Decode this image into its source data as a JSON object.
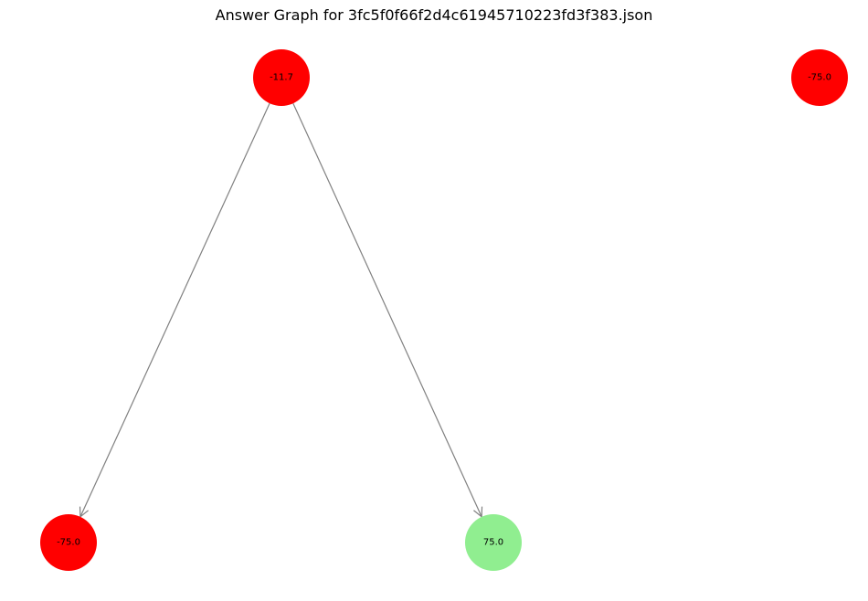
{
  "title": "Answer Graph for 3fc5f0f66f2d4c61945710223fd3f383.json",
  "colors": {
    "negative": "#ff0000",
    "positive": "#90ee90",
    "edge": "#808080"
  },
  "nodes": [
    {
      "id": "n0",
      "label": "-11.7",
      "color": "#ff0000"
    },
    {
      "id": "n1",
      "label": "-75.0",
      "color": "#ff0000"
    },
    {
      "id": "n2",
      "label": "-75.0",
      "color": "#ff0000"
    },
    {
      "id": "n3",
      "label": "75.0",
      "color": "#90ee90"
    }
  ],
  "edges": [
    {
      "from": "n0",
      "to": "n2"
    },
    {
      "from": "n0",
      "to": "n3"
    }
  ]
}
